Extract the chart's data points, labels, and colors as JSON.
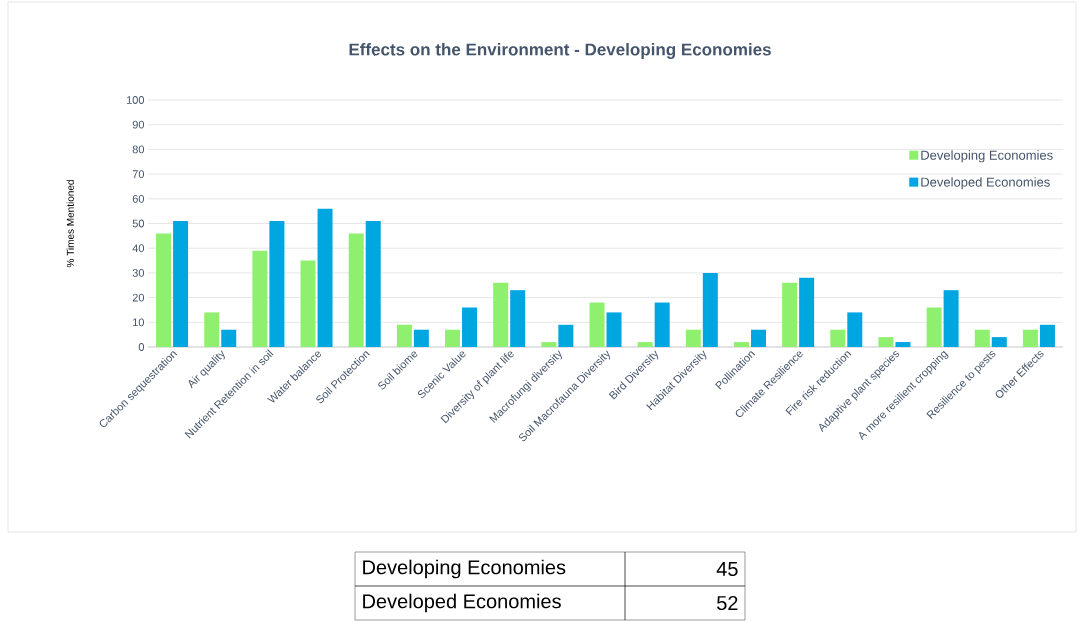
{
  "chart_data": {
    "type": "bar",
    "title": "Effects on the Environment - Developing Economies",
    "ylabel": "% Times Mentioned",
    "categories": [
      "Carbon sequestration",
      "Air quality",
      "Nutrient Retention in soil",
      "Water balance",
      "Soil Protection",
      "Soil biome",
      "Scenic Value",
      "Diversity of plant life",
      "Macrofungi diversity",
      "Soil Macrofauna Diversity",
      "Bird Diversity",
      "Habitat Diversity",
      "Pollination",
      "Climate Resilience",
      "Fire risk reduction",
      "Adaptive plant species",
      "A more resilient cropping",
      "Resilience to pests",
      "Other Effects"
    ],
    "series": [
      {
        "name": "Developing Economies",
        "color": "#8ef06e",
        "values": [
          46,
          14,
          39,
          35,
          46,
          9,
          7,
          26,
          2,
          18,
          2,
          7,
          2,
          26,
          7,
          4,
          16,
          7,
          7
        ]
      },
      {
        "name": "Developed Economies",
        "color": "#00a6e0",
        "values": [
          51,
          7,
          51,
          56,
          51,
          7,
          16,
          23,
          9,
          14,
          18,
          30,
          7,
          28,
          14,
          2,
          23,
          4,
          9
        ]
      }
    ],
    "ylim": [
      0,
      100
    ],
    "yticks": [
      0,
      10,
      20,
      30,
      40,
      50,
      60,
      70,
      80,
      90,
      100
    ],
    "grid": "y",
    "legend": "right",
    "annotations": [
      "Developing Economies",
      "45",
      "Developed Economies",
      "52"
    ]
  }
}
